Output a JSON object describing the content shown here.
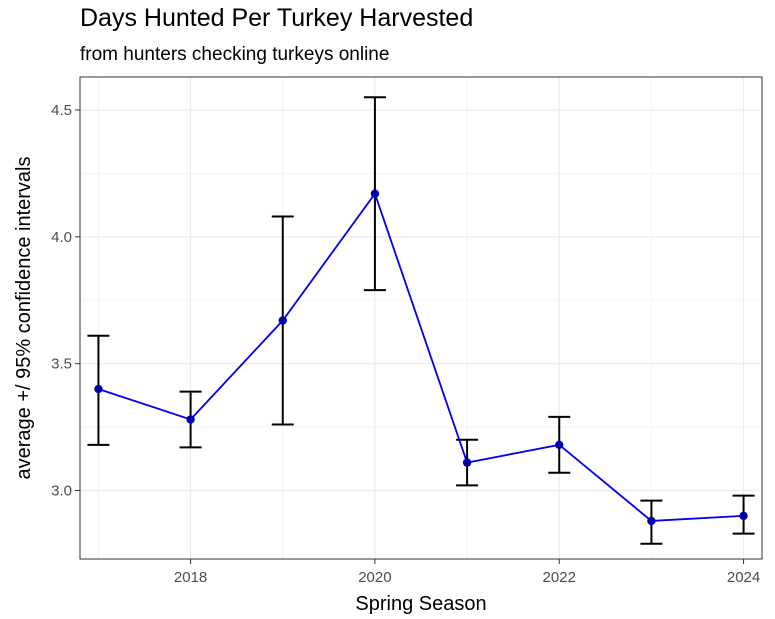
{
  "chart_data": {
    "type": "line",
    "title": "Days Hunted Per Turkey Harvested",
    "subtitle": "from hunters checking turkeys online",
    "xlabel": "Spring Season",
    "ylabel": "average +/ 95% confidence intervals",
    "xlim": [
      2016.8,
      2024.2
    ],
    "ylim": [
      2.73,
      4.63
    ],
    "xticks": [
      2018,
      2020,
      2022,
      2024
    ],
    "yticks": [
      3.0,
      3.5,
      4.0,
      4.5
    ],
    "ytick_labels": [
      "3.0",
      "3.5",
      "4.0",
      "4.5"
    ],
    "grid": true,
    "series": [
      {
        "x": [
          2017,
          2018,
          2019,
          2020,
          2021,
          2022,
          2023,
          2024
        ],
        "values": [
          3.4,
          3.28,
          3.67,
          4.17,
          3.11,
          3.18,
          2.88,
          2.9
        ],
        "lower": [
          3.18,
          3.17,
          3.26,
          3.79,
          3.02,
          3.07,
          2.79,
          2.83
        ],
        "upper": [
          3.61,
          3.39,
          4.08,
          4.55,
          3.2,
          3.29,
          2.96,
          2.98
        ],
        "color": "#0000ee"
      }
    ],
    "errorbar_color": "#000000"
  }
}
